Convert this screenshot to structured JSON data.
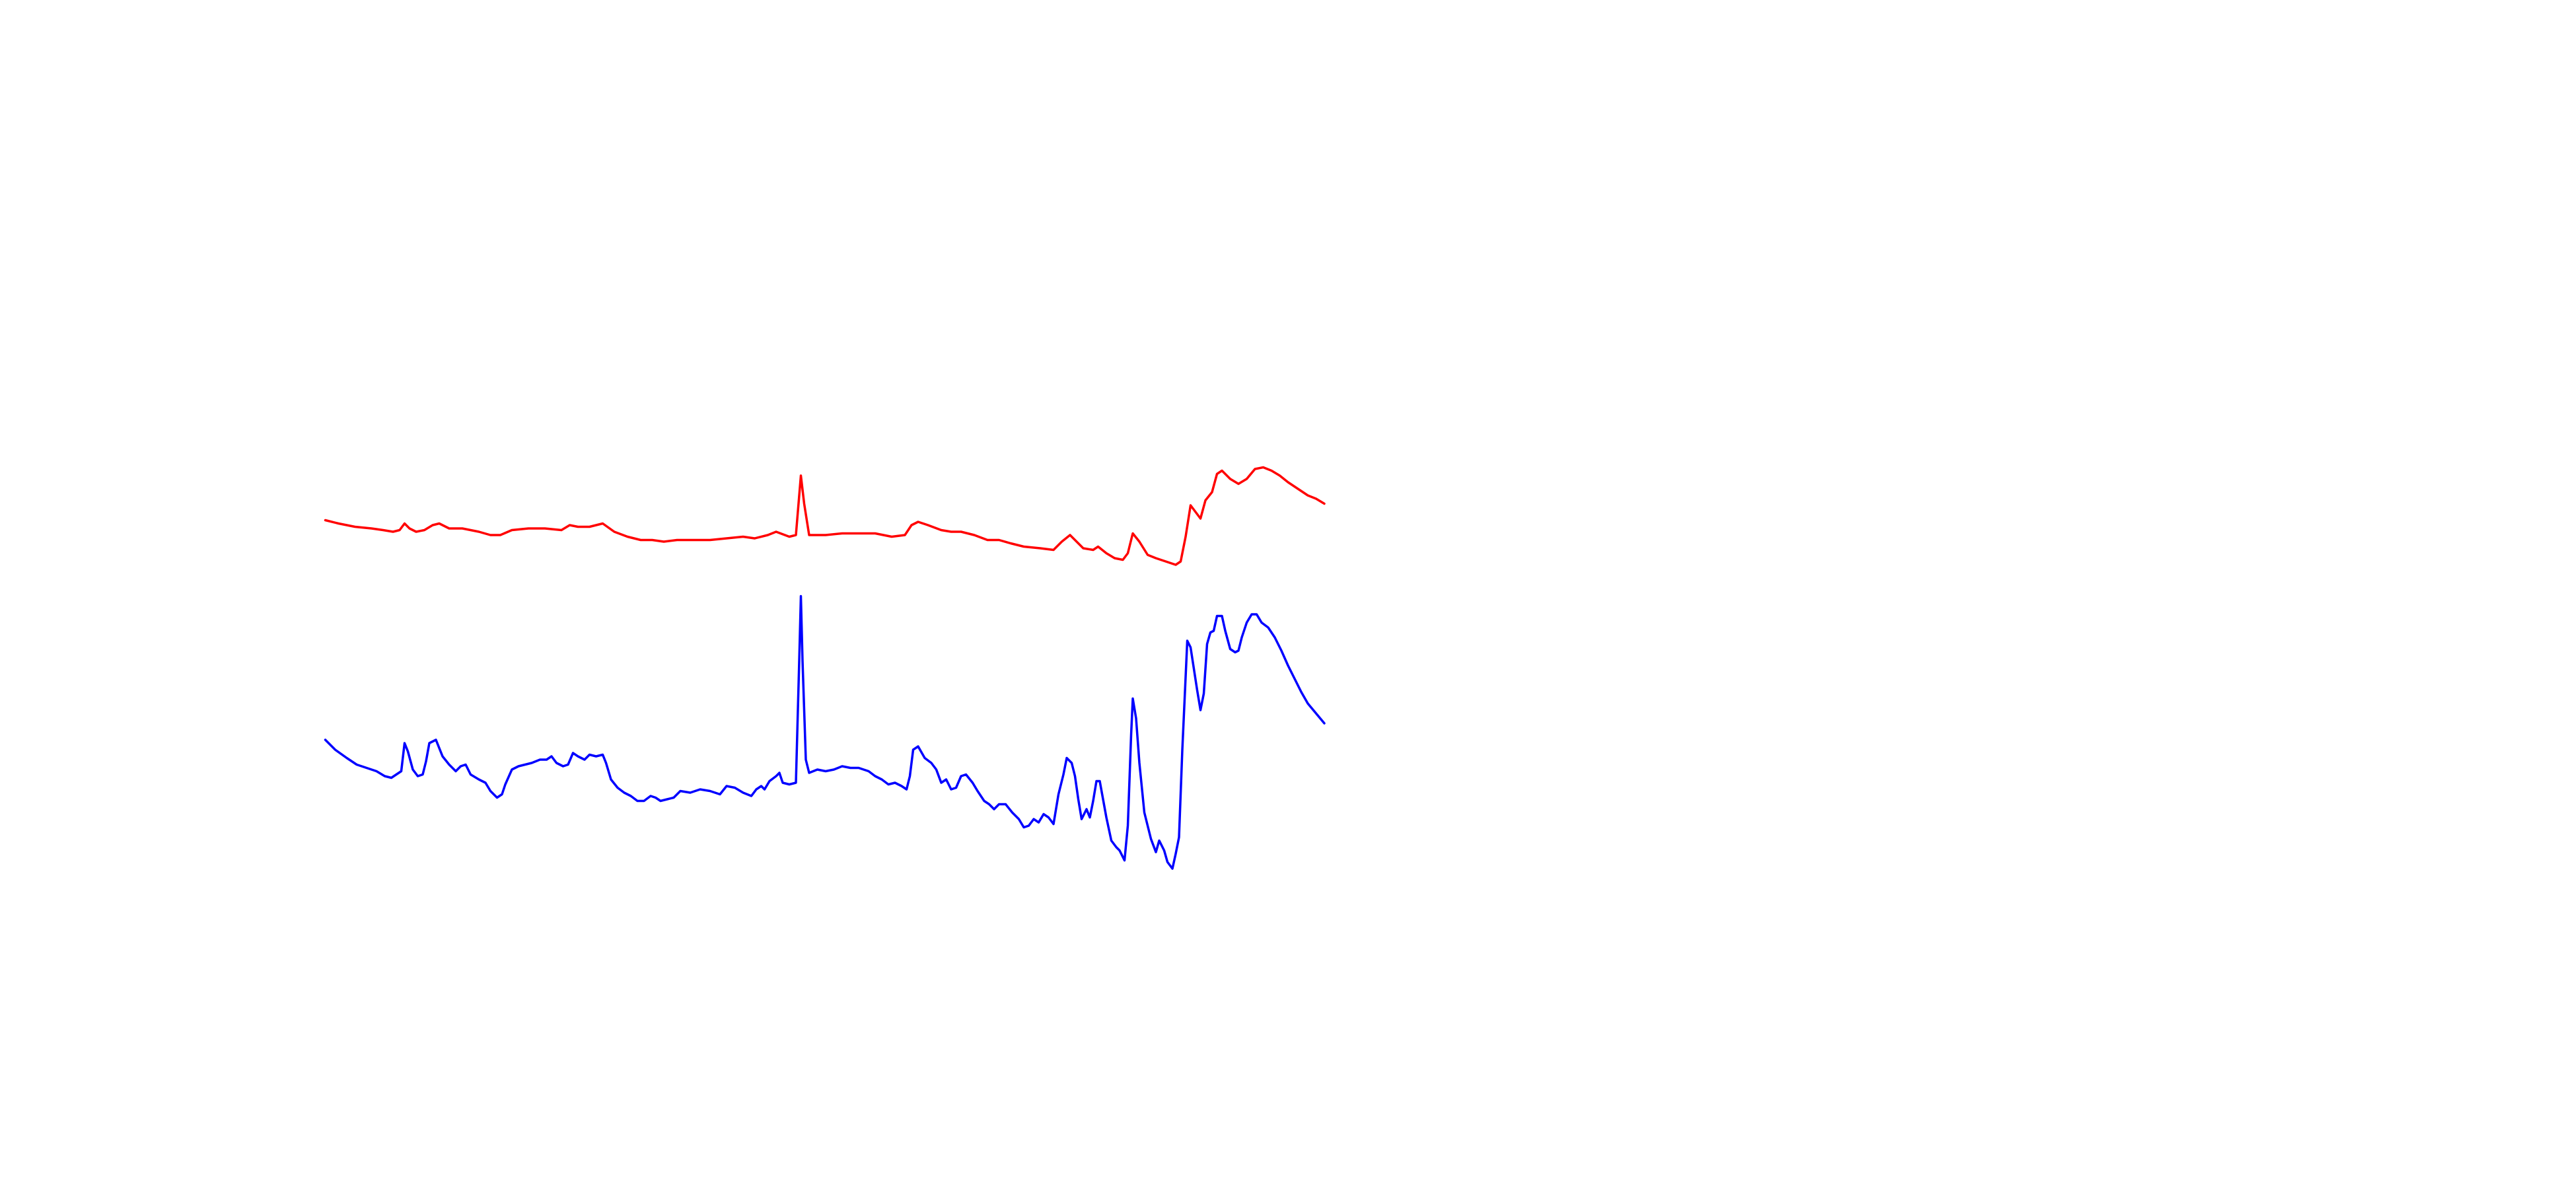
{
  "chart_data": [
    {
      "type": "line",
      "color": "#ff0000",
      "xlim": [
        0,
        1560
      ],
      "ylim": [
        0,
        720
      ],
      "x": [
        197,
        205,
        215,
        225,
        232,
        238,
        242,
        245,
        248,
        252,
        257,
        262,
        266,
        272,
        280,
        290,
        297,
        303,
        310,
        320,
        330,
        340,
        345,
        350,
        357,
        365,
        372,
        380,
        388,
        395,
        402,
        410,
        420,
        430,
        440,
        450,
        457,
        465,
        470,
        478,
        482,
        485,
        487,
        490,
        500,
        510,
        520,
        530,
        540,
        548,
        552,
        556,
        562,
        570,
        576,
        582,
        590,
        598,
        605,
        612,
        620,
        630,
        638,
        643,
        648,
        652,
        656,
        662,
        665,
        670,
        675,
        680,
        683,
        686,
        690,
        695,
        700,
        706,
        712,
        715,
        718,
        721,
        724,
        727,
        730,
        734,
        737,
        740,
        745,
        750,
        755,
        760,
        765,
        770,
        775,
        780,
        786,
        792,
        797,
        802
      ],
      "values": [
        405,
        403,
        401,
        400,
        399,
        398,
        399,
        403,
        400,
        398,
        399,
        402,
        403,
        400,
        400,
        398,
        396,
        396,
        399,
        400,
        400,
        399,
        402,
        401,
        401,
        403,
        398,
        395,
        393,
        393,
        392,
        393,
        393,
        393,
        394,
        395,
        394,
        396,
        398,
        395,
        396,
        432,
        415,
        396,
        396,
        397,
        397,
        397,
        395,
        396,
        402,
        404,
        402,
        399,
        398,
        398,
        396,
        393,
        393,
        391,
        389,
        388,
        387,
        392,
        396,
        392,
        388,
        387,
        389,
        385,
        382,
        381,
        385,
        397,
        392,
        384,
        382,
        380,
        378,
        380,
        395,
        414,
        410,
        406,
        417,
        422,
        433,
        435,
        430,
        427,
        430,
        436,
        437,
        435,
        432,
        428,
        424,
        420,
        418,
        415
      ]
    },
    {
      "type": "line",
      "color": "#0000ff",
      "xlim": [
        0,
        1560
      ],
      "ylim": [
        0,
        720
      ],
      "x": [
        197,
        203,
        210,
        216,
        222,
        228,
        233,
        237,
        240,
        243,
        245,
        247,
        250,
        253,
        256,
        258,
        260,
        264,
        268,
        272,
        276,
        279,
        282,
        285,
        290,
        294,
        297,
        301,
        304,
        306,
        310,
        314,
        318,
        322,
        327,
        331,
        334,
        337,
        341,
        344,
        347,
        350,
        354,
        357,
        361,
        365,
        367,
        370,
        374,
        378,
        382,
        386,
        390,
        394,
        397,
        400,
        404,
        408,
        412,
        418,
        424,
        430,
        436,
        440,
        445,
        450,
        455,
        458,
        461,
        463,
        466,
        470,
        472,
        474,
        478,
        482,
        484,
        485,
        486,
        488,
        490,
        495,
        500,
        505,
        510,
        515,
        520,
        526,
        530,
        534,
        538,
        542,
        546,
        549,
        551,
        553,
        556,
        560,
        564,
        567,
        570,
        573,
        576,
        579,
        582,
        585,
        589,
        592,
        596,
        599,
        602,
        605,
        609,
        613,
        617,
        620,
        623,
        626,
        629,
        632,
        635,
        638,
        641,
        644,
        646,
        649,
        651,
        653,
        655,
        658,
        660,
        662,
        664,
        666,
        668,
        670,
        673,
        676,
        678,
        681,
        683,
        685,
        686,
        688,
        690,
        693,
        697,
        700,
        702,
        705,
        707,
        710,
        712,
        714,
        716,
        719,
        721,
        723,
        725,
        727,
        729,
        731,
        733,
        735,
        737,
        740,
        742,
        745,
        748,
        750,
        752,
        755,
        758,
        761,
        764,
        768,
        772,
        776,
        780,
        784,
        788,
        792,
        797,
        802
      ],
      "values": [
        272,
        266,
        261,
        257,
        255,
        253,
        250,
        249,
        251,
        253,
        270,
        265,
        254,
        250,
        251,
        259,
        270,
        272,
        262,
        257,
        253,
        256,
        257,
        251,
        248,
        246,
        241,
        237,
        239,
        245,
        254,
        256,
        257,
        258,
        260,
        260,
        262,
        258,
        256,
        257,
        264,
        262,
        260,
        263,
        262,
        263,
        258,
        248,
        243,
        240,
        238,
        235,
        235,
        238,
        237,
        235,
        236,
        237,
        241,
        240,
        242,
        241,
        239,
        244,
        243,
        240,
        238,
        242,
        244,
        242,
        247,
        250,
        252,
        246,
        245,
        246,
        320,
        359,
        320,
        260,
        252,
        254,
        253,
        254,
        256,
        255,
        255,
        253,
        250,
        248,
        245,
        246,
        244,
        242,
        250,
        266,
        268,
        261,
        258,
        254,
        246,
        248,
        242,
        243,
        250,
        251,
        246,
        241,
        235,
        233,
        230,
        233,
        233,
        228,
        224,
        219,
        220,
        224,
        222,
        227,
        225,
        221,
        239,
        251,
        261,
        258,
        250,
        236,
        224,
        230,
        225,
        235,
        247,
        247,
        236,
        225,
        211,
        207,
        205,
        199,
        220,
        275,
        297,
        285,
        258,
        228,
        212,
        204,
        211,
        205,
        198,
        194,
        203,
        213,
        266,
        332,
        328,
        315,
        302,
        290,
        300,
        330,
        337,
        338,
        347,
        347,
        338,
        327,
        325,
        326,
        334,
        343,
        348,
        348,
        343,
        340,
        334,
        326,
        317,
        309,
        301,
        294,
        288,
        282
      ]
    }
  ]
}
